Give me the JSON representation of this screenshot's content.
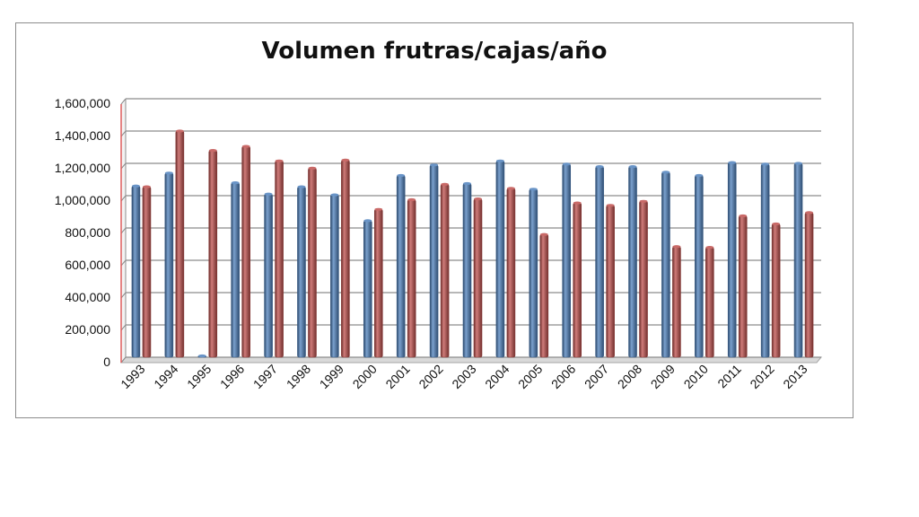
{
  "chart_data": {
    "type": "bar",
    "title": "Volumen frutras/cajas/año",
    "xlabel": "",
    "ylabel": "",
    "ylim": [
      0,
      1600000
    ],
    "yticks": [
      "0",
      "200,000",
      "400,000",
      "600,000",
      "800,000",
      "1,000,000",
      "1,200,000",
      "1,400,000",
      "1,600,000"
    ],
    "grid": true,
    "legend": "none",
    "categories": [
      "1993",
      "1994",
      "1995",
      "1996",
      "1997",
      "1998",
      "1999",
      "2000",
      "2001",
      "2002",
      "2003",
      "2004",
      "2005",
      "2006",
      "2007",
      "2008",
      "2009",
      "2010",
      "2011",
      "2012",
      "2013"
    ],
    "series": [
      {
        "color": "#4f81bd",
        "values": [
          1060000,
          1140000,
          0,
          1080000,
          1010000,
          1055000,
          1005000,
          845000,
          1125000,
          1190000,
          1075000,
          1215000,
          1040000,
          1195000,
          1180000,
          1180000,
          1145000,
          1125000,
          1205000,
          1195000,
          1200000
        ]
      },
      {
        "color": "#c0504d",
        "values": [
          1055000,
          1400000,
          1280000,
          1305000,
          1215000,
          1170000,
          1220000,
          915000,
          975000,
          1070000,
          980000,
          1045000,
          760000,
          955000,
          940000,
          965000,
          685000,
          680000,
          875000,
          825000,
          895000
        ]
      }
    ]
  }
}
